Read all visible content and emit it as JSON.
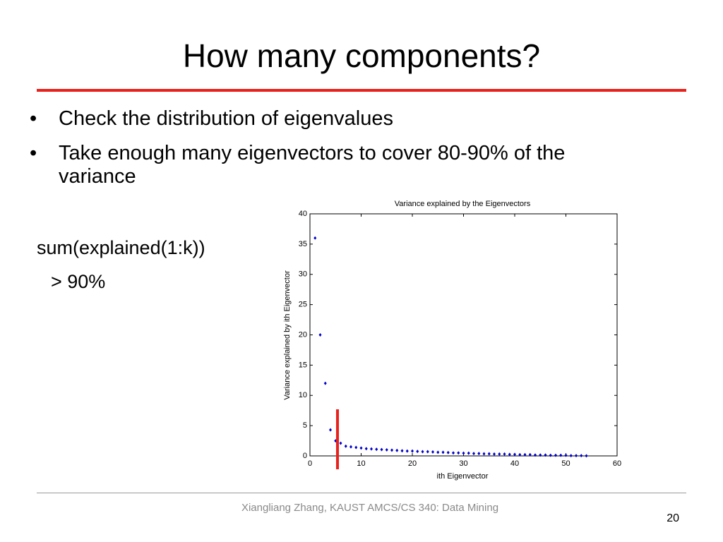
{
  "title": "How many components?",
  "bullets": [
    "Check the distribution of eigenvalues",
    "Take enough many eigenvectors to cover 80-90% of the variance"
  ],
  "formula": [
    "sum(explained(1:k))",
    "> 90%"
  ],
  "footer": "Xiangliang Zhang, KAUST AMCS/CS 340: Data Mining",
  "page_number": "20",
  "chart_data": {
    "type": "scatter",
    "title": "Variance explained by the Eigenvectors",
    "x_label": "ith Eigenvector",
    "y_label": "Variance explained by ith Eigenvector",
    "x": [
      1,
      2,
      3,
      4,
      5,
      6,
      7,
      8,
      9,
      10,
      11,
      12,
      13,
      14,
      15,
      16,
      17,
      18,
      19,
      20,
      21,
      22,
      23,
      24,
      25,
      26,
      27,
      28,
      29,
      30,
      31,
      32,
      33,
      34,
      35,
      36,
      37,
      38,
      39,
      40,
      41,
      42,
      43,
      44,
      45,
      46,
      47,
      48,
      49,
      50,
      51,
      52,
      53,
      54
    ],
    "values": [
      36,
      20,
      12,
      4.3,
      2.5,
      2.1,
      1.6,
      1.5,
      1.4,
      1.3,
      1.2,
      1.15,
      1.1,
      1.05,
      1.0,
      0.95,
      0.9,
      0.85,
      0.8,
      0.8,
      0.75,
      0.7,
      0.7,
      0.65,
      0.6,
      0.6,
      0.55,
      0.5,
      0.5,
      0.45,
      0.45,
      0.4,
      0.4,
      0.35,
      0.35,
      0.3,
      0.3,
      0.3,
      0.25,
      0.25,
      0.2,
      0.2,
      0.2,
      0.15,
      0.15,
      0.15,
      0.1,
      0.1,
      0.1,
      0.1,
      0.05,
      0.05,
      0.05,
      0.02
    ],
    "color": "#0000cc",
    "xlim": [
      0,
      60
    ],
    "xticks": [
      0,
      10,
      20,
      30,
      40,
      50,
      60
    ],
    "ylim": [
      0,
      40
    ],
    "yticks": [
      0,
      5,
      10,
      15,
      20,
      25,
      30,
      35,
      40
    ]
  }
}
